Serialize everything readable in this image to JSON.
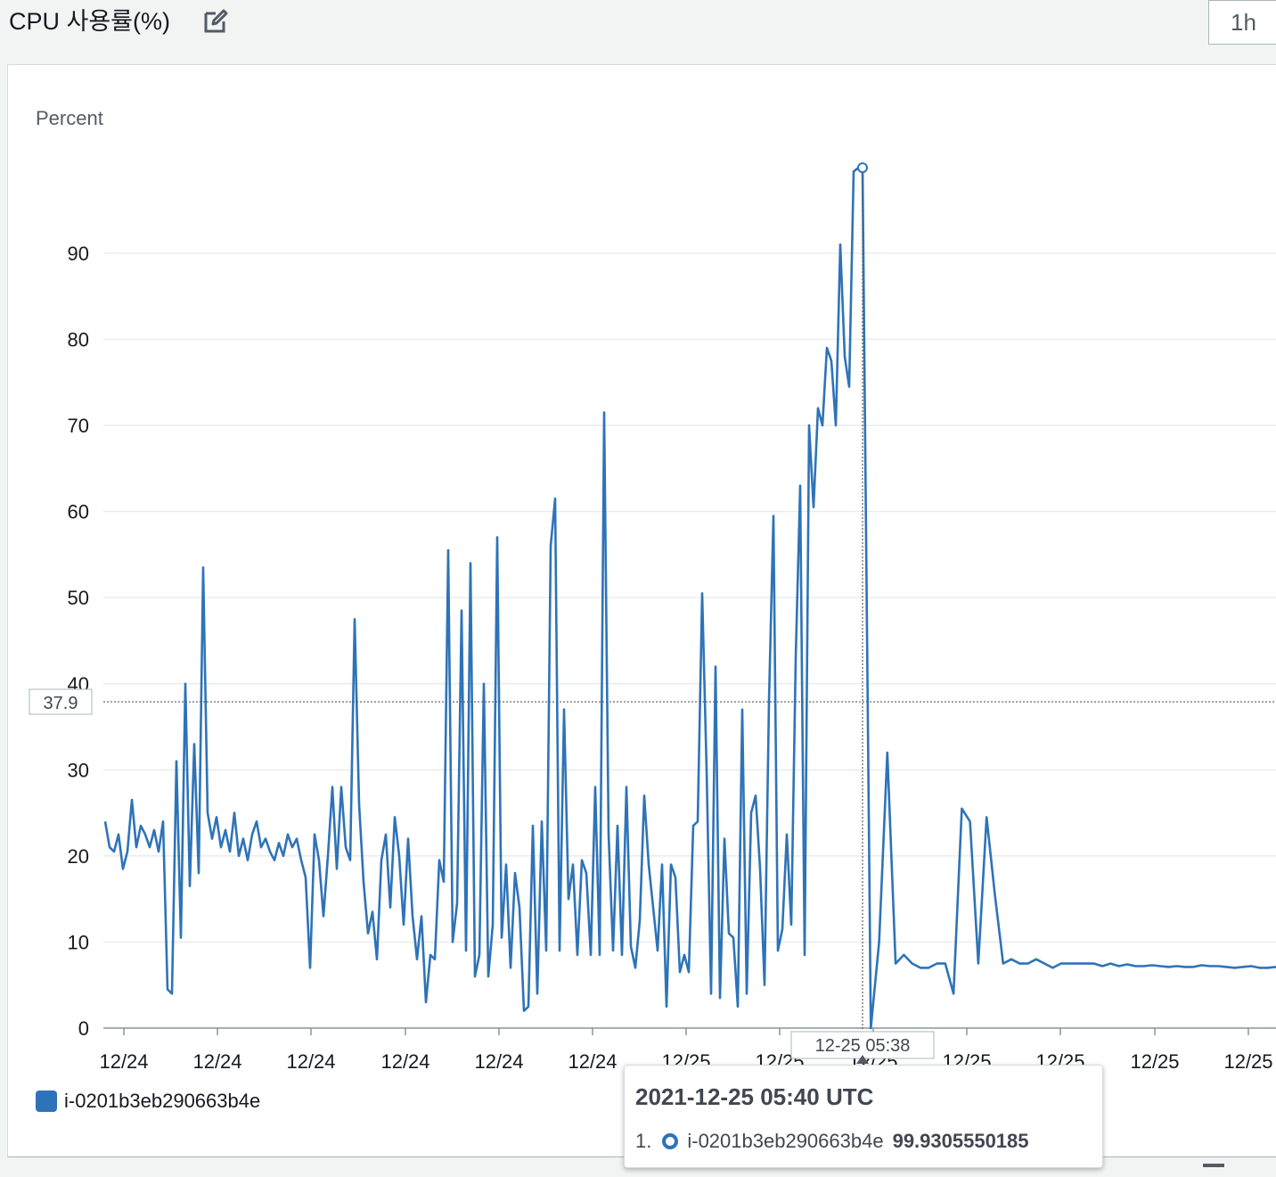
{
  "header": {
    "title": "CPU 사용률(%)",
    "period_label": "1h"
  },
  "colors": {
    "series": "#2e73b8",
    "grid": "#eaeded",
    "axis_text": "#16191f"
  },
  "icons": {
    "edit": "edit-icon",
    "minus": "minus-icon"
  },
  "legend": {
    "items": [
      {
        "label": "i-0201b3eb290663b4e"
      }
    ]
  },
  "crosshair": {
    "y_value_label": "37.9",
    "x_time_label": "12-25 05:38"
  },
  "tooltip": {
    "title": "2021-12-25 05:40 UTC",
    "rows": [
      {
        "index": "1.",
        "series": "i-0201b3eb290663b4e",
        "value": "99.9305550185"
      }
    ]
  },
  "chart_data": {
    "type": "line",
    "ylabel": "Percent",
    "ylim": [
      0,
      100
    ],
    "yticks": [
      0,
      10,
      20,
      30,
      40,
      50,
      60,
      70,
      80,
      90
    ],
    "xticks": [
      "12/24",
      "12/24",
      "12/24",
      "12/24",
      "12/24",
      "12/24",
      "12/25",
      "12/25",
      "12/25",
      "12/25",
      "12/25",
      "12/25",
      "12/25"
    ],
    "grid": true,
    "legend_position": "bottom-left",
    "series": [
      {
        "name": "i-0201b3eb290663b4e",
        "values": [
          24,
          21,
          20.5,
          22.5,
          18.5,
          20.5,
          26.5,
          21,
          23.5,
          22.5,
          21,
          23,
          20.5,
          24,
          4.5,
          4,
          31,
          10.5,
          40,
          16.5,
          33,
          18,
          53.5,
          25,
          22,
          24.5,
          21,
          23,
          20.5,
          25,
          20,
          22,
          19.5,
          22.5,
          24,
          21,
          22,
          20.5,
          19.5,
          21.5,
          20,
          22.5,
          21,
          22,
          19.5,
          17.5,
          7,
          22.5,
          19.5,
          13,
          20,
          28,
          18.5,
          28,
          21,
          19.5,
          47.5,
          26,
          17,
          11,
          13.5,
          8,
          19.5,
          22.5,
          14,
          24.5,
          20,
          12,
          22,
          13,
          8,
          13,
          3,
          8.5,
          8,
          19.5,
          17,
          55.5,
          10,
          14.5,
          48.5,
          9,
          54,
          6,
          8.5,
          40,
          6,
          12,
          57,
          10.5,
          19,
          7,
          18,
          14,
          2,
          2.5,
          23.5,
          4,
          24,
          9,
          56,
          61.5,
          9,
          37,
          15,
          19,
          8.5,
          19.5,
          18,
          8.5,
          28,
          8.5,
          71.5,
          22.5,
          9,
          23.5,
          8.5,
          28,
          9.5,
          7,
          12.5,
          27,
          19,
          14,
          9,
          19,
          2.5,
          19,
          17.5,
          6.5,
          8.5,
          6.5,
          23.5,
          24,
          50.5,
          30,
          4,
          42,
          3.5,
          22,
          11,
          10.5,
          2.5,
          37,
          4,
          25,
          27,
          18.5,
          5,
          38,
          59.5,
          9,
          11.5,
          22.5,
          12,
          43,
          63,
          8.5,
          70,
          60.5,
          72,
          70,
          79,
          77.5,
          70,
          91,
          78,
          74.5,
          99.5,
          99.9,
          99.93,
          0,
          10,
          32,
          7.5,
          8.5,
          7.5,
          7,
          7,
          7.5,
          7.5,
          4,
          25.5,
          24,
          7.5,
          24.5,
          15.5,
          7.5,
          8,
          7.5,
          7.5,
          8,
          7.5,
          7,
          7.5,
          7.5,
          7.5,
          7.5,
          7.5,
          7.2,
          7.5,
          7.2,
          7.4,
          7.2,
          7.2,
          7.3,
          7.2,
          7.1,
          7.2,
          7.1,
          7.1,
          7.3,
          7.2,
          7.2,
          7.1,
          7,
          7.1,
          7.2,
          7,
          7,
          7.1
        ]
      }
    ]
  }
}
